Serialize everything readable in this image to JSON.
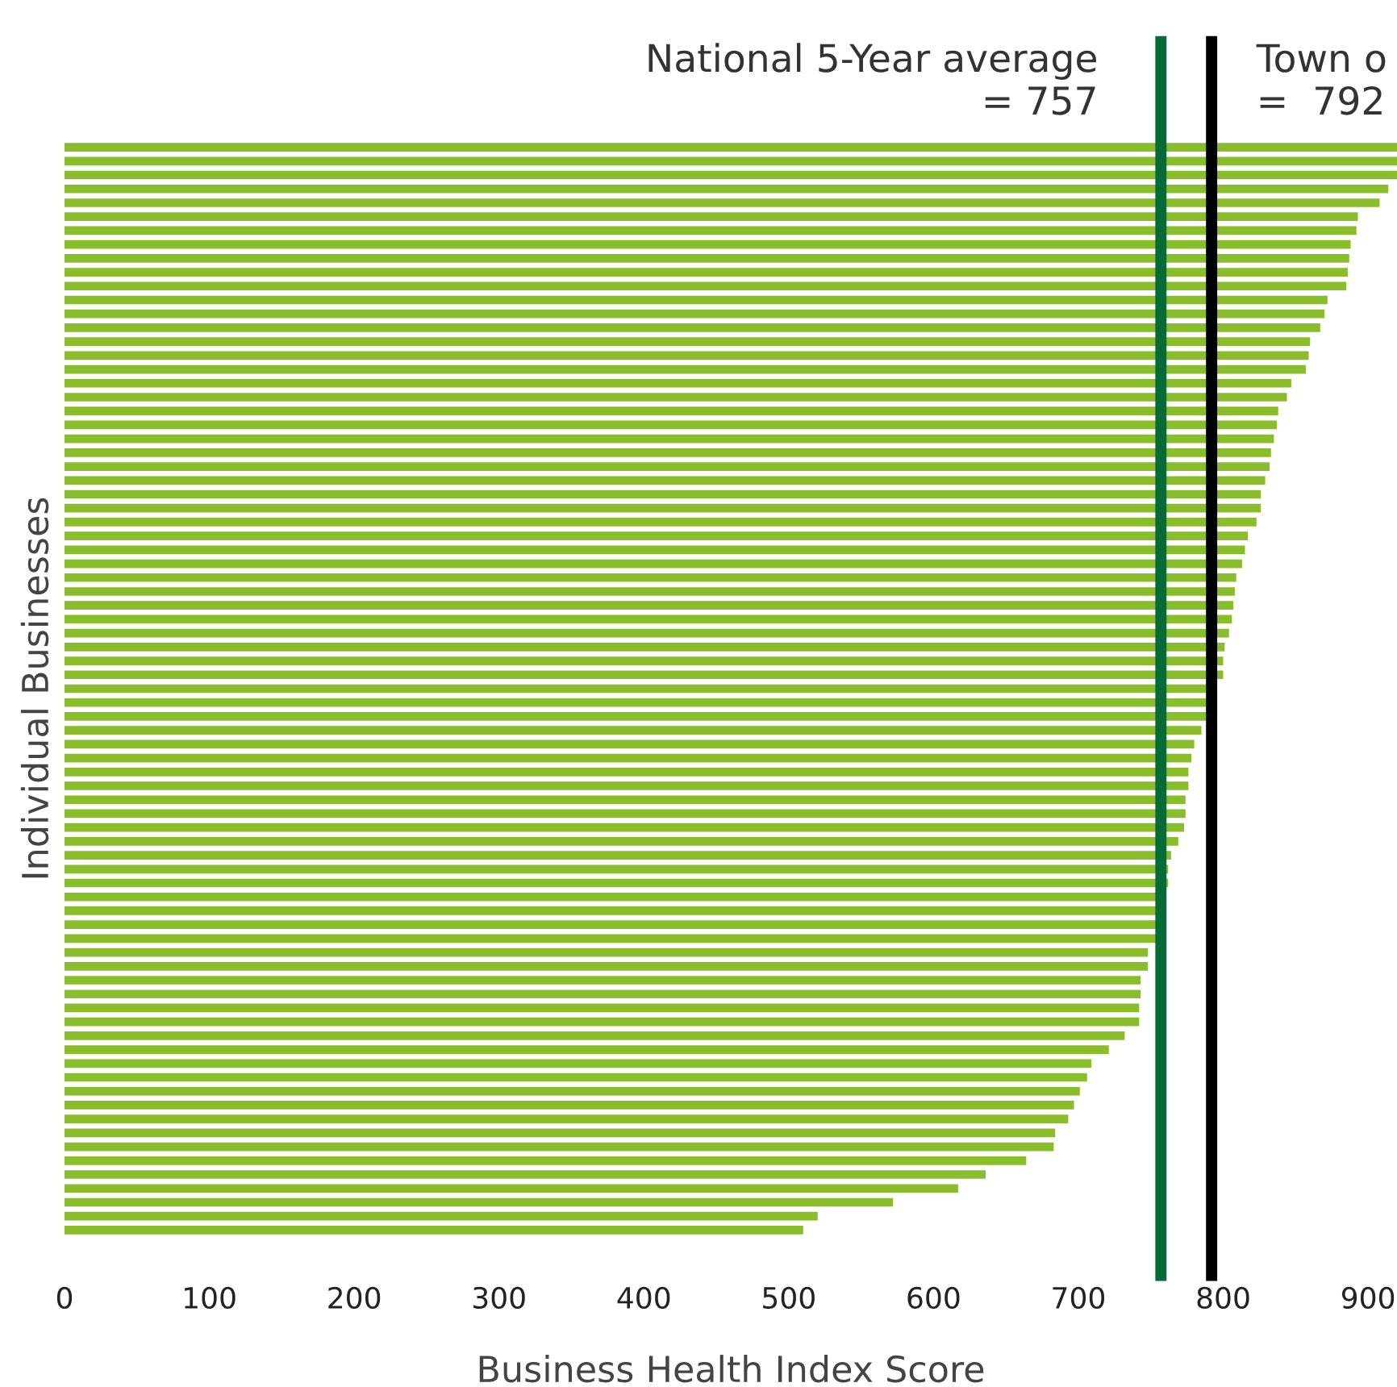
{
  "chart_data": {
    "type": "bar",
    "orientation": "horizontal",
    "xlabel": "Business Health Index Score",
    "ylabel": "Individual Businesses",
    "categories": [
      null,
      null,
      null,
      null,
      null,
      null,
      null,
      null,
      null,
      null,
      null,
      null,
      null,
      null,
      null,
      null,
      null,
      null,
      null,
      null,
      null,
      null,
      null,
      null,
      null,
      null,
      null,
      null,
      null,
      null,
      null,
      null,
      null,
      null,
      null,
      null,
      null,
      null,
      null,
      null,
      null,
      null,
      null,
      null,
      null,
      null,
      null,
      null,
      null,
      null,
      null,
      null,
      null,
      null,
      null,
      null,
      null,
      null,
      null,
      null,
      null,
      null,
      null,
      null,
      null,
      null,
      null,
      null,
      null,
      null,
      null,
      null,
      null,
      null,
      null,
      null,
      null,
      null,
      null
    ],
    "values": [
      920,
      920,
      920,
      914,
      908,
      893,
      892,
      888,
      887,
      886,
      885,
      872,
      870,
      867,
      860,
      859,
      857,
      847,
      844,
      838,
      837,
      835,
      833,
      832,
      829,
      826,
      826,
      823,
      817,
      815,
      813,
      809,
      808,
      807,
      806,
      804,
      801,
      800,
      800,
      791,
      790,
      789,
      785,
      780,
      778,
      776,
      776,
      774,
      774,
      773,
      769,
      764,
      762,
      762,
      758,
      758,
      754,
      754,
      748,
      748,
      743,
      743,
      742,
      742,
      732,
      721,
      709,
      706,
      701,
      697,
      693,
      684,
      683,
      664,
      636,
      617,
      572,
      520,
      510
    ],
    "color": "#8abd2b",
    "xlim": [
      0,
      920
    ],
    "xticks": [
      0,
      100,
      200,
      300,
      400,
      500,
      600,
      700,
      800,
      900
    ],
    "grid": false,
    "legend": false,
    "ref_lines": [
      {
        "axis": "x",
        "value": 757,
        "label": "National 5-Year average\n= 757",
        "color": "#076b38",
        "line_style": "solid"
      },
      {
        "axis": "x",
        "value": 792,
        "label": "Town o\n=  792",
        "color": "#000000",
        "line_style": "solid"
      }
    ]
  }
}
